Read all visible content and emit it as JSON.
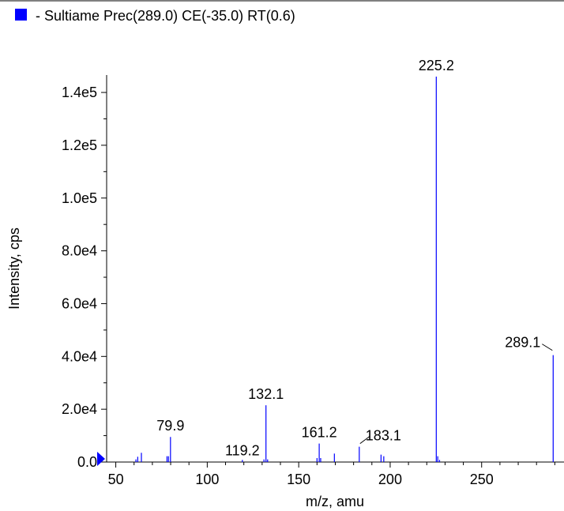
{
  "chart_data": {
    "type": "bar",
    "title": "- Sultiame Prec(289.0) CE(-35.0) RT(0.6)",
    "xlabel": "m/z, amu",
    "ylabel": "Intensity, cps",
    "xlim": [
      45,
      292
    ],
    "ylim": [
      0,
      146000
    ],
    "x_ticks": [
      50,
      100,
      150,
      200,
      250
    ],
    "x_tick_labels": [
      "50",
      "100",
      "150",
      "200",
      "250"
    ],
    "y_ticks": [
      0,
      20000,
      40000,
      60000,
      80000,
      100000,
      120000,
      140000
    ],
    "y_tick_labels": [
      "0.0",
      "2.0e4",
      "4.0e4",
      "6.0e4",
      "8.0e4",
      "1.0e5",
      "1.2e5",
      "1.4e5"
    ],
    "series_color": "#0000ff",
    "legend_color": "#0000ff",
    "peaks": [
      {
        "mz": 61.0,
        "intensity": 1000
      },
      {
        "mz": 62.0,
        "intensity": 2000
      },
      {
        "mz": 64.0,
        "intensity": 3500
      },
      {
        "mz": 78.0,
        "intensity": 2200
      },
      {
        "mz": 78.8,
        "intensity": 2200
      },
      {
        "mz": 79.9,
        "intensity": 9500
      },
      {
        "mz": 119.2,
        "intensity": 800
      },
      {
        "mz": 131.0,
        "intensity": 1000
      },
      {
        "mz": 132.1,
        "intensity": 21500
      },
      {
        "mz": 133.0,
        "intensity": 1000
      },
      {
        "mz": 160.0,
        "intensity": 1500
      },
      {
        "mz": 161.2,
        "intensity": 7000
      },
      {
        "mz": 162.0,
        "intensity": 1500
      },
      {
        "mz": 169.5,
        "intensity": 3200
      },
      {
        "mz": 183.1,
        "intensity": 5800
      },
      {
        "mz": 195.0,
        "intensity": 2800
      },
      {
        "mz": 196.5,
        "intensity": 2200
      },
      {
        "mz": 225.2,
        "intensity": 146000
      },
      {
        "mz": 226.0,
        "intensity": 2200
      },
      {
        "mz": 227.0,
        "intensity": 800
      },
      {
        "mz": 289.1,
        "intensity": 40500
      }
    ],
    "annotations": [
      {
        "label": "225.2",
        "mz": 225.2,
        "intensity": 146000
      },
      {
        "label": "289.1",
        "mz": 289.1,
        "intensity": 40500
      },
      {
        "label": "132.1",
        "mz": 132.1,
        "intensity": 21500
      },
      {
        "label": "79.9",
        "mz": 79.9,
        "intensity": 9500
      },
      {
        "label": "161.2",
        "mz": 161.2,
        "intensity": 7000
      },
      {
        "label": "183.1",
        "mz": 183.1,
        "intensity": 5800
      },
      {
        "label": "119.2",
        "mz": 119.2,
        "intensity": 800
      }
    ]
  }
}
